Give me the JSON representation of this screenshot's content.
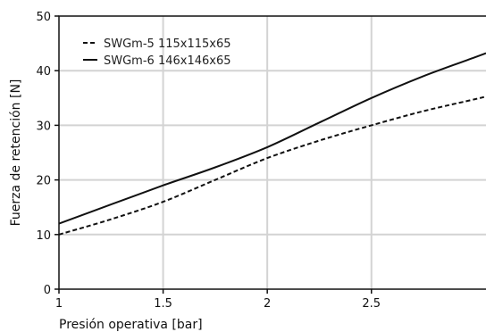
{
  "chart_data": {
    "type": "line",
    "xlabel": "Presión operativa [bar]",
    "ylabel": "Fuerza de retención [N]",
    "xlim": [
      1,
      3.05
    ],
    "ylim": [
      0,
      50
    ],
    "x_ticks": [
      1,
      1.5,
      2,
      2.5
    ],
    "x_tick_labels": [
      "1",
      "1.5",
      "2",
      "2.5"
    ],
    "y_ticks": [
      0,
      10,
      20,
      30,
      40,
      50
    ],
    "y_tick_labels": [
      "0",
      "10",
      "20",
      "30",
      "40",
      "50"
    ],
    "grid": true,
    "legend_position": "top-left",
    "series": [
      {
        "name": "SWGm-5 115x115x65",
        "style": "dashed",
        "color": "#111111",
        "x": [
          1,
          1.25,
          1.5,
          1.75,
          2,
          2.25,
          2.5,
          2.75,
          3,
          3.05
        ],
        "y": [
          10,
          12.8,
          16,
          20,
          24,
          27.2,
          30,
          32.6,
          34.8,
          35.3
        ]
      },
      {
        "name": "SWGm-6 146x146x65",
        "style": "solid",
        "color": "#111111",
        "x": [
          1,
          1.25,
          1.5,
          1.75,
          2,
          2.25,
          2.5,
          2.75,
          3,
          3.05
        ],
        "y": [
          12,
          15.5,
          19,
          22.3,
          26,
          30.5,
          35,
          39,
          42.5,
          43.2
        ]
      }
    ]
  }
}
